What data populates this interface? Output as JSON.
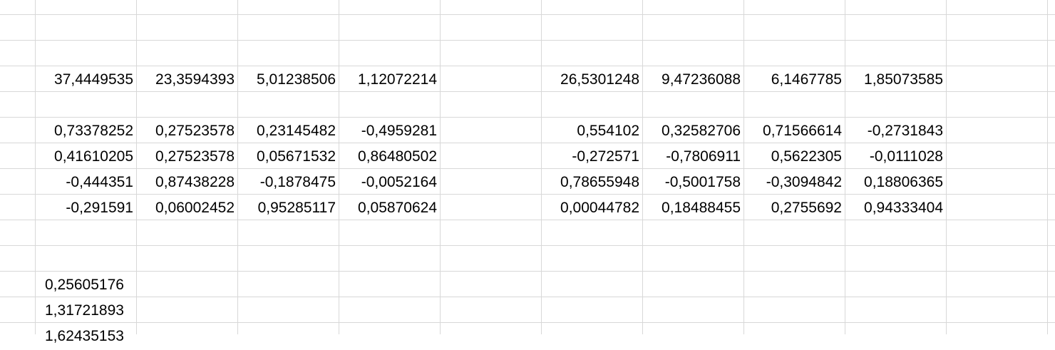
{
  "sheet": {
    "rows": [
      {
        "id": "r4",
        "cells": [
          {
            "col": "B",
            "value": "37,4449535"
          },
          {
            "col": "C",
            "value": "23,3594393"
          },
          {
            "col": "D",
            "value": "5,01238506"
          },
          {
            "col": "E",
            "value": "1,12072214"
          },
          {
            "col": "G",
            "value": "26,5301248"
          },
          {
            "col": "H",
            "value": "9,47236088"
          },
          {
            "col": "I",
            "value": "6,1467785"
          },
          {
            "col": "J",
            "value": "1,85073585"
          }
        ]
      },
      {
        "id": "r6",
        "cells": [
          {
            "col": "B",
            "value": "0,73378252"
          },
          {
            "col": "C",
            "value": "0,27523578"
          },
          {
            "col": "D",
            "value": "0,23145482"
          },
          {
            "col": "E",
            "value": "-0,4959281"
          },
          {
            "col": "G",
            "value": "0,554102"
          },
          {
            "col": "H",
            "value": "0,32582706"
          },
          {
            "col": "I",
            "value": "0,71566614"
          },
          {
            "col": "J",
            "value": "-0,2731843"
          }
        ]
      },
      {
        "id": "r7",
        "cells": [
          {
            "col": "B",
            "value": "0,41610205"
          },
          {
            "col": "C",
            "value": "0,27523578"
          },
          {
            "col": "D",
            "value": "0,05671532"
          },
          {
            "col": "E",
            "value": "0,86480502"
          },
          {
            "col": "G",
            "value": "-0,272571"
          },
          {
            "col": "H",
            "value": "-0,7806911"
          },
          {
            "col": "I",
            "value": "0,5622305"
          },
          {
            "col": "J",
            "value": "-0,0111028"
          }
        ]
      },
      {
        "id": "r8",
        "cells": [
          {
            "col": "B",
            "value": "-0,444351"
          },
          {
            "col": "C",
            "value": "0,87438228"
          },
          {
            "col": "D",
            "value": "-0,1878475"
          },
          {
            "col": "E",
            "value": "-0,0052164"
          },
          {
            "col": "G",
            "value": "0,78655948"
          },
          {
            "col": "H",
            "value": "-0,5001758"
          },
          {
            "col": "I",
            "value": "-0,3094842"
          },
          {
            "col": "J",
            "value": "0,18806365"
          }
        ]
      },
      {
        "id": "r9",
        "cells": [
          {
            "col": "B",
            "value": "-0,291591"
          },
          {
            "col": "C",
            "value": "0,06002452"
          },
          {
            "col": "D",
            "value": "0,95285117"
          },
          {
            "col": "E",
            "value": "0,05870624"
          },
          {
            "col": "G",
            "value": "0,00044782"
          },
          {
            "col": "H",
            "value": "0,18488455"
          },
          {
            "col": "I",
            "value": "0,2755692"
          },
          {
            "col": "J",
            "value": "0,94333404"
          }
        ]
      },
      {
        "id": "r12",
        "cells": [
          {
            "col": "B",
            "value": "0,25605176"
          }
        ]
      },
      {
        "id": "r13",
        "cells": [
          {
            "col": "B",
            "value": "1,31721893"
          }
        ]
      },
      {
        "id": "r14",
        "cells": [
          {
            "col": "B",
            "value": "1,62435153"
          }
        ]
      }
    ]
  }
}
